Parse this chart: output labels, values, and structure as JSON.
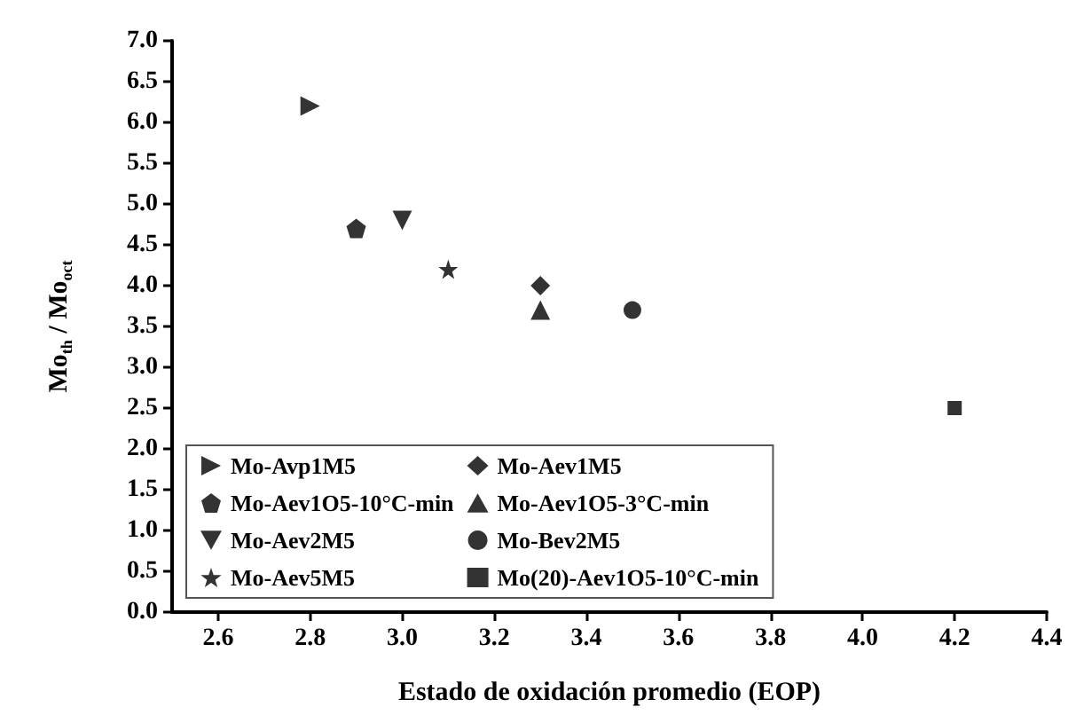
{
  "chart_data": {
    "type": "scatter",
    "xlabel": "Estado de oxidación promedio (EOP)",
    "ylabel": "Mo$_{th}$ / Mo$_{oct}$",
    "xlim": [
      2.5,
      4.4
    ],
    "xticks": [
      {
        "value": 2.6,
        "label": "2.6"
      },
      {
        "value": 2.8,
        "label": "2.8"
      },
      {
        "value": 3.0,
        "label": "3.0"
      },
      {
        "value": 3.2,
        "label": "3.2"
      },
      {
        "value": 3.4,
        "label": "3.4"
      },
      {
        "value": 3.6,
        "label": "3.6"
      },
      {
        "value": 3.8,
        "label": "3.8"
      },
      {
        "value": 4.0,
        "label": "4.0"
      },
      {
        "value": 4.2,
        "label": "4.2"
      },
      {
        "value": 4.4,
        "label": "4.4"
      }
    ],
    "ylim": [
      0,
      7
    ],
    "yticks": [
      {
        "value": 0,
        "label": "0.0"
      },
      {
        "value": 0.5,
        "label": "0.5"
      },
      {
        "value": 1,
        "label": "1.0"
      },
      {
        "value": 1.5,
        "label": "1.5"
      },
      {
        "value": 2,
        "label": "2.0"
      },
      {
        "value": 2.5,
        "label": "2.5"
      },
      {
        "value": 3,
        "label": "3.0"
      },
      {
        "value": 3.5,
        "label": "3.5"
      },
      {
        "value": 4,
        "label": "4.0"
      },
      {
        "value": 4.5,
        "label": "4.5"
      },
      {
        "value": 5,
        "label": "5.0"
      },
      {
        "value": 5.5,
        "label": "5.5"
      },
      {
        "value": 6,
        "label": "6.0"
      },
      {
        "value": 6.5,
        "label": "6.5"
      },
      {
        "value": 7,
        "label": "7.0"
      }
    ],
    "grid": false,
    "legend": "bottom left",
    "series": [
      {
        "name": "Mo-Avp1M5",
        "color": "#000000",
        "marker": "triangle-right",
        "x": [
          2.8
        ],
        "values": [
          6.2
        ]
      },
      {
        "name": "Mo-Aev1O5-10°C-min",
        "color": "#000000",
        "x": [
          2.9
        ],
        "values": [
          4.7
        ]
      },
      {
        "name": "Mo-Aev2M5",
        "color": "#000000",
        "marker": "triangle-down",
        "x": [
          3.0
        ],
        "values": [
          4.8
        ]
      },
      {
        "name": "Mo-Aev5M5",
        "color": "#000000",
        "marker": "star",
        "x": [
          3.1
        ],
        "values": [
          4.2
        ]
      },
      {
        "name": "Mo-Aev1M5",
        "color": "#000000",
        "marker": "diamond",
        "x": [
          3.3
        ],
        "values": [
          4.0
        ]
      },
      {
        "name": "Mo-Aev1O5-3°C-min",
        "color": "#000000",
        "marker": "triangle",
        "x": [
          3.3
        ],
        "values": [
          3.7
        ]
      },
      {
        "name": "Mo-Bev2M5",
        "color": "#000000",
        "marker": "circle",
        "x": [
          3.5
        ],
        "values": [
          3.7
        ]
      },
      {
        "name": "Mo(20)-Aev1O5-10°C-min",
        "color": "#000000",
        "marker": "square",
        "x": [
          4.2
        ],
        "values": [
          2.5
        ]
      }
    ]
  }
}
